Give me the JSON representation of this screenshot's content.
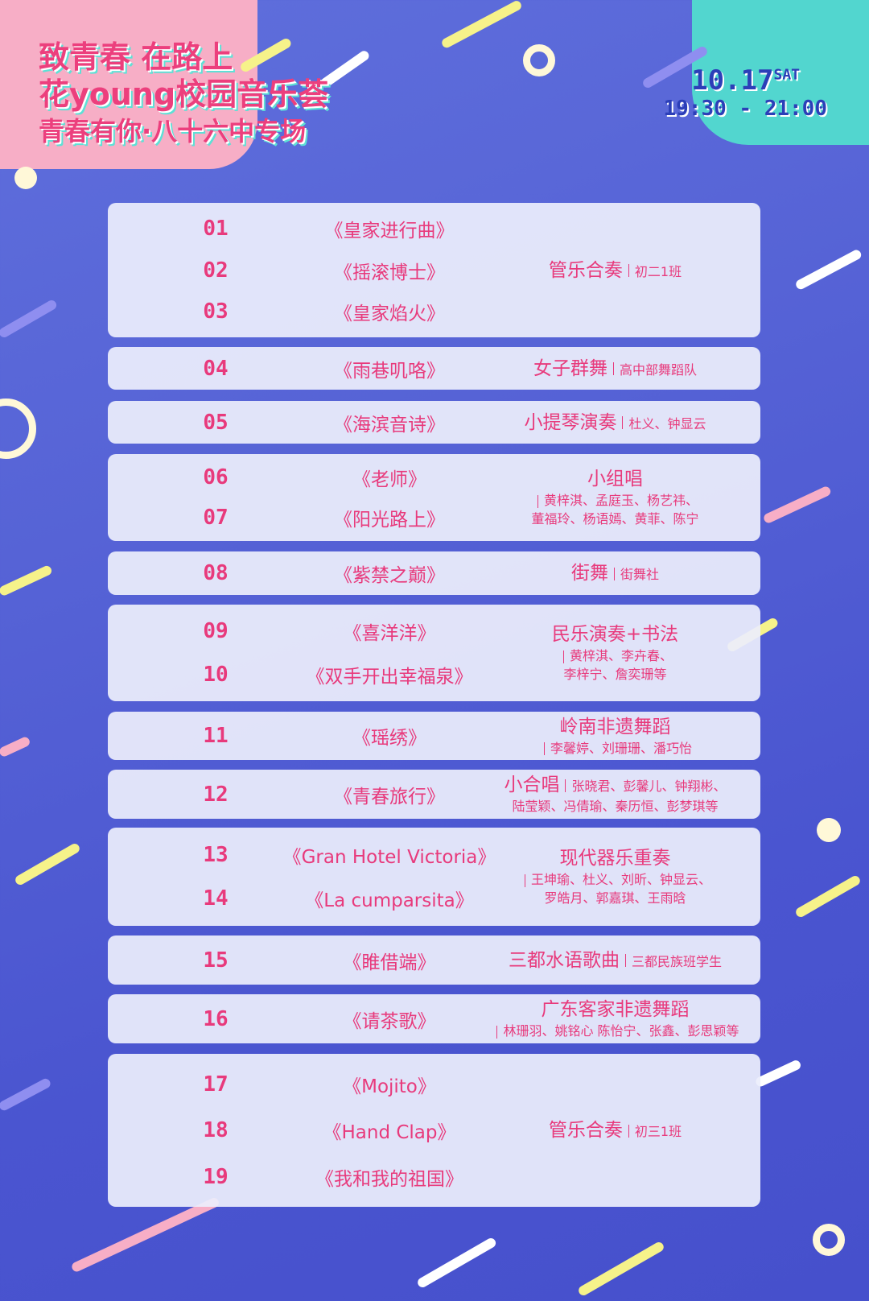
{
  "header": {
    "title_line1": "致青春  在路上",
    "title_line2": "花young校园音乐荟",
    "title_line3": "青春有你·八十六中专场",
    "date": "10.17",
    "weekday": "SAT",
    "time": "19:30 - 21:00"
  },
  "colors": {
    "text": "#e83a7c",
    "background": "#5663d6",
    "card": "#eceefc",
    "accent_pink": "#f7aec6",
    "accent_teal": "#52d6cf",
    "date_text": "#2c3fb8"
  },
  "program": [
    {
      "items": [
        {
          "num": "01",
          "title": "《皇家进行曲》"
        },
        {
          "num": "02",
          "title": "《摇滚博士》"
        },
        {
          "num": "03",
          "title": "《皇家焰火》"
        }
      ],
      "performer": {
        "main": "管乐合奏",
        "inline": "初二1班",
        "members": []
      }
    },
    {
      "items": [
        {
          "num": "04",
          "title": "《雨巷叽咯》"
        }
      ],
      "performer": {
        "main": "女子群舞",
        "inline": "高中部舞蹈队",
        "members": []
      }
    },
    {
      "items": [
        {
          "num": "05",
          "title": "《海滨音诗》"
        }
      ],
      "performer": {
        "main": "小提琴演奏",
        "inline": "杜义、钟显云",
        "members": []
      }
    },
    {
      "items": [
        {
          "num": "06",
          "title": "《老师》"
        },
        {
          "num": "07",
          "title": "《阳光路上》"
        }
      ],
      "performer": {
        "main": "小组唱",
        "inline": "",
        "members": [
          "黄梓淇、孟庭玉、杨艺祎、",
          "董福玲、杨语嫣、黄菲、陈宁"
        ]
      }
    },
    {
      "items": [
        {
          "num": "08",
          "title": "《紫禁之巅》"
        }
      ],
      "performer": {
        "main": "街舞",
        "inline": "街舞社",
        "members": []
      }
    },
    {
      "items": [
        {
          "num": "09",
          "title": "《喜洋洋》"
        },
        {
          "num": "10",
          "title": "《双手开出幸福泉》"
        }
      ],
      "performer": {
        "main": "民乐演奏+书法",
        "inline": "",
        "members": [
          "黄梓淇、李卉春、",
          "李梓宁、詹奕珊等"
        ]
      }
    },
    {
      "items": [
        {
          "num": "11",
          "title": "《瑶绣》"
        }
      ],
      "performer": {
        "main": "岭南非遗舞蹈",
        "inline": "",
        "members": [
          "李馨婷、刘珊珊、潘巧怡"
        ]
      }
    },
    {
      "items": [
        {
          "num": "12",
          "title": "《青春旅行》"
        }
      ],
      "performer": {
        "main": "小合唱",
        "inline": "张晓君、彭馨儿、钟翔彬、",
        "members": [
          "陆莹颖、冯倩瑜、秦历恒、彭梦琪等"
        ]
      }
    },
    {
      "items": [
        {
          "num": "13",
          "title": "《Gran  Hotel Victoria》"
        },
        {
          "num": "14",
          "title": "《La cumparsita》"
        }
      ],
      "performer": {
        "main": "现代器乐重奏",
        "inline": "",
        "members": [
          "王坤瑜、杜义、刘昕、钟显云、",
          "罗皓月、郭嘉琪、王雨晗"
        ]
      }
    },
    {
      "items": [
        {
          "num": "15",
          "title": "《睢借端》"
        }
      ],
      "performer": {
        "main": "三都水语歌曲",
        "inline": "三都民族班学生",
        "members": []
      }
    },
    {
      "items": [
        {
          "num": "16",
          "title": "《请茶歌》"
        }
      ],
      "performer": {
        "main": "广东客家非遗舞蹈",
        "inline": "",
        "members": [
          "林珊羽、姚铭心 陈怡宁、张鑫、彭思颖等"
        ]
      }
    },
    {
      "items": [
        {
          "num": "17",
          "title": "《Mojito》"
        },
        {
          "num": "18",
          "title": "《Hand Clap》"
        },
        {
          "num": "19",
          "title": "《我和我的祖国》"
        }
      ],
      "performer": {
        "main": "管乐合奏",
        "inline": "初三1班",
        "members": []
      }
    }
  ]
}
